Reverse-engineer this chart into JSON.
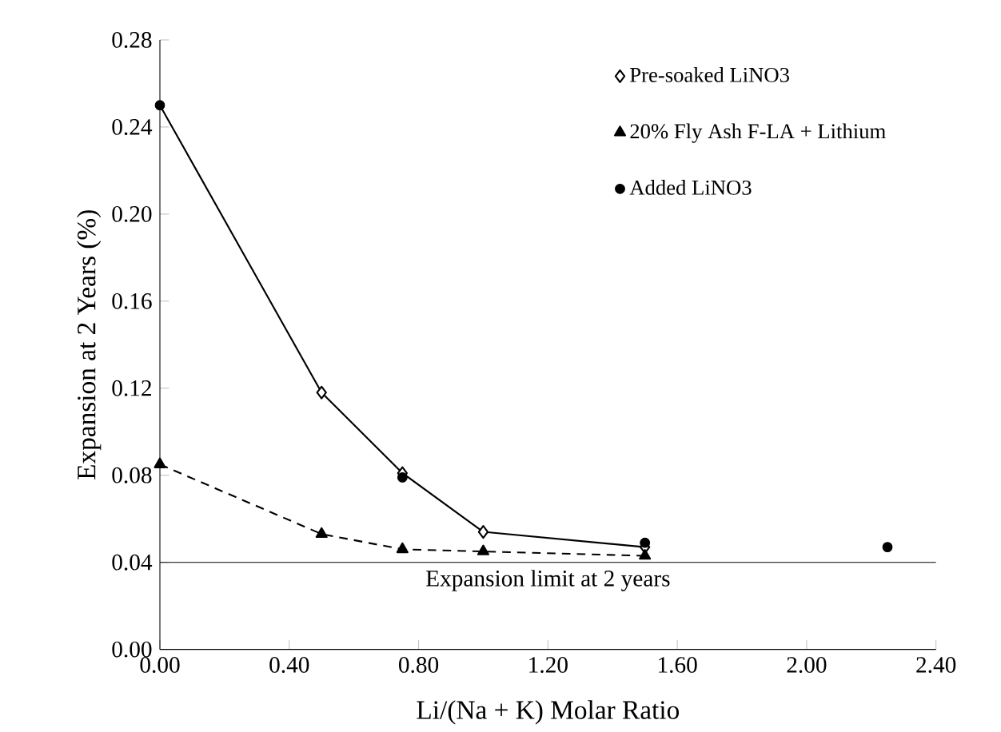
{
  "chart_data": {
    "type": "line",
    "xlabel": "Li/(Na + K) Molar Ratio",
    "ylabel": "Expansion at 2 Years  (%)",
    "xlim": [
      0,
      2.4
    ],
    "ylim": [
      0,
      0.28
    ],
    "xticks": [
      {
        "value": 0,
        "label": "0.00"
      },
      {
        "value": 0.4,
        "label": "0.40"
      },
      {
        "value": 0.8,
        "label": "0.80"
      },
      {
        "value": 1.2,
        "label": "1.20"
      },
      {
        "value": 1.6,
        "label": "1.60"
      },
      {
        "value": 2.0,
        "label": "2.00"
      },
      {
        "value": 2.4,
        "label": "2.40"
      }
    ],
    "yticks": [
      {
        "value": 0,
        "label": "0.00"
      },
      {
        "value": 0.04,
        "label": "0.04"
      },
      {
        "value": 0.08,
        "label": "0.08"
      },
      {
        "value": 0.12,
        "label": "0.12"
      },
      {
        "value": 0.16,
        "label": "0.16"
      },
      {
        "value": 0.2,
        "label": "0.20"
      },
      {
        "value": 0.24,
        "label": "0.24"
      },
      {
        "value": 0.28,
        "label": "0.28"
      }
    ],
    "legend": "top right",
    "series": [
      {
        "name": "Pre-soaked LiNO3",
        "type": "line",
        "color": "#000000",
        "marker": "diamond",
        "line_style": "solid",
        "x": [
          0,
          0.5,
          0.75,
          1.0,
          1.5
        ],
        "values": [
          0.25,
          0.118,
          0.081,
          0.054,
          0.047
        ]
      },
      {
        "name": "20% Fly Ash F-LA + Lithium",
        "type": "line",
        "color": "#000000",
        "marker": "triangle",
        "line_style": "dashed",
        "x": [
          0,
          0.5,
          0.75,
          1.0,
          1.5
        ],
        "values": [
          0.085,
          0.053,
          0.046,
          0.045,
          0.043
        ]
      },
      {
        "name": "Added LiNO3",
        "type": "scatter",
        "color": "#000000",
        "marker": "circle",
        "x": [
          0,
          0.75,
          1.5,
          2.25
        ],
        "values": [
          0.25,
          0.079,
          0.049,
          0.047
        ]
      }
    ],
    "ref_lines": [
      {
        "axis": "y",
        "value": 0.04,
        "label": "Expansion limit at 2 years",
        "color": "#000000"
      }
    ]
  }
}
